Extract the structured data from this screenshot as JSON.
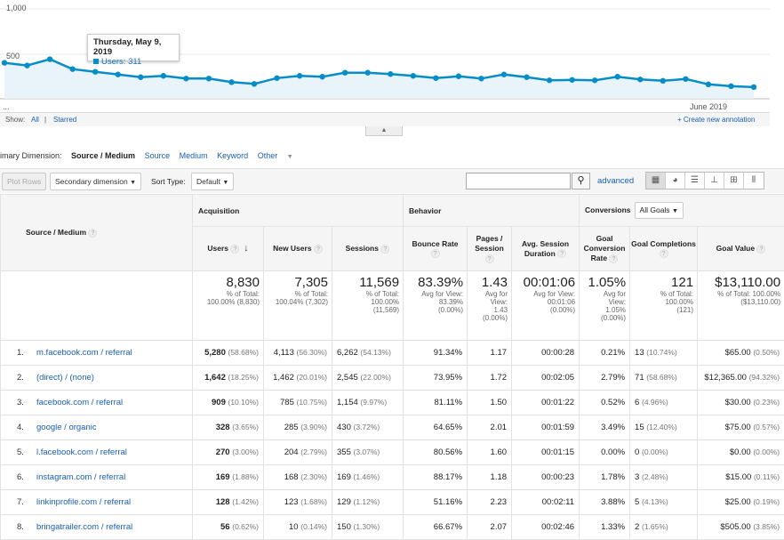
{
  "chart": {
    "y_labels": [
      "1,000",
      "500",
      "..."
    ],
    "x_label": "June 2019",
    "points": [
      400,
      370,
      440,
      330,
      300,
      270,
      240,
      255,
      225,
      225,
      185,
      165,
      230,
      255,
      245,
      290,
      290,
      275,
      255,
      230,
      250,
      225,
      270,
      240,
      205,
      210,
      205,
      245,
      215,
      200,
      220,
      160,
      140,
      130
    ],
    "y_max": 1000,
    "line_color": "#058dc7",
    "fill_color": "#e9f3fa"
  },
  "tooltip": {
    "date": "Thursday, May 9, 2019",
    "series": "Users: 311"
  },
  "annotations": {
    "show_label": "Show:",
    "all": "All",
    "sep": "|",
    "starred": "Starred",
    "create": "+ Create new annotation"
  },
  "primary_dimension": {
    "label": "imary Dimension:",
    "selected": "Source / Medium",
    "options": [
      "Source",
      "Medium",
      "Keyword",
      "Other"
    ]
  },
  "toolbar": {
    "plot_rows": "Plot Rows",
    "secondary_dimension": "Secondary dimension",
    "sort_type_label": "Sort Type:",
    "sort_type_value": "Default",
    "advanced": "advanced"
  },
  "table": {
    "dimension_header": "Source / Medium",
    "groups": {
      "acquisition": "Acquisition",
      "behavior": "Behavior",
      "conversions": "Conversions",
      "goals_select": "All Goals"
    },
    "columns": {
      "users": "Users",
      "new_users": "New Users",
      "sessions": "Sessions",
      "bounce_rate": "Bounce Rate",
      "pages_session": "Pages / Session",
      "avg_duration": "Avg. Session Duration",
      "goal_conv_rate": "Goal Conversion Rate",
      "goal_completions": "Goal Completions",
      "goal_value": "Goal Value"
    },
    "totals": {
      "users": {
        "value": "8,830",
        "sub1": "% of Total:",
        "sub2": "100.00% (8,830)"
      },
      "new_users": {
        "value": "7,305",
        "sub1": "% of Total:",
        "sub2": "100.04% (7,302)"
      },
      "sessions": {
        "value": "11,569",
        "sub1": "% of Total:",
        "sub2": "100.00%",
        "sub3": "(11,569)"
      },
      "bounce_rate": {
        "value": "83.39%",
        "sub1": "Avg for View:",
        "sub2": "83.39%",
        "sub3": "(0.00%)"
      },
      "pages_session": {
        "value": "1.43",
        "sub1": "Avg for",
        "sub2": "View:",
        "sub3": "1.43",
        "sub4": "(0.00%)"
      },
      "avg_duration": {
        "value": "00:01:06",
        "sub1": "Avg for View:",
        "sub2": "00:01:06",
        "sub3": "(0.00%)"
      },
      "goal_conv_rate": {
        "value": "1.05%",
        "sub1": "Avg for",
        "sub2": "View:",
        "sub3": "1.05%",
        "sub4": "(0.00%)"
      },
      "goal_completions": {
        "value": "121",
        "sub1": "% of Total:",
        "sub2": "100.00%",
        "sub3": "(121)"
      },
      "goal_value": {
        "value": "$13,110.00",
        "sub1": "% of Total: 100.00%",
        "sub2": "($13,110.00)"
      }
    },
    "rows": [
      {
        "idx": "1.",
        "name": "m.facebook.com / referral",
        "users": "5,280",
        "users_pct": "(58.68%)",
        "new_users": "4,113",
        "new_users_pct": "(56.30%)",
        "sessions": "6,262",
        "sessions_pct": "(54.13%)",
        "bounce": "91.34%",
        "pages": "1.17",
        "duration": "00:00:28",
        "conv": "0.21%",
        "comp": "13",
        "comp_pct": "(10.74%)",
        "value": "$65.00",
        "value_pct": "(0.50%)"
      },
      {
        "idx": "2.",
        "name": "(direct) / (none)",
        "users": "1,642",
        "users_pct": "(18.25%)",
        "new_users": "1,462",
        "new_users_pct": "(20.01%)",
        "sessions": "2,545",
        "sessions_pct": "(22.00%)",
        "bounce": "73.95%",
        "pages": "1.72",
        "duration": "00:02:05",
        "conv": "2.79%",
        "comp": "71",
        "comp_pct": "(58.68%)",
        "value": "$12,365.00",
        "value_pct": "(94.32%)"
      },
      {
        "idx": "3.",
        "name": "facebook.com / referral",
        "users": "909",
        "users_pct": "(10.10%)",
        "new_users": "785",
        "new_users_pct": "(10.75%)",
        "sessions": "1,154",
        "sessions_pct": "(9.97%)",
        "bounce": "81.11%",
        "pages": "1.50",
        "duration": "00:01:22",
        "conv": "0.52%",
        "comp": "6",
        "comp_pct": "(4.96%)",
        "value": "$30.00",
        "value_pct": "(0.23%)"
      },
      {
        "idx": "4.",
        "name": "google / organic",
        "users": "328",
        "users_pct": "(3.65%)",
        "new_users": "285",
        "new_users_pct": "(3.90%)",
        "sessions": "430",
        "sessions_pct": "(3.72%)",
        "bounce": "64.65%",
        "pages": "2.01",
        "duration": "00:01:59",
        "conv": "3.49%",
        "comp": "15",
        "comp_pct": "(12.40%)",
        "value": "$75.00",
        "value_pct": "(0.57%)"
      },
      {
        "idx": "5.",
        "name": "l.facebook.com / referral",
        "users": "270",
        "users_pct": "(3.00%)",
        "new_users": "204",
        "new_users_pct": "(2.79%)",
        "sessions": "355",
        "sessions_pct": "(3.07%)",
        "bounce": "80.56%",
        "pages": "1.60",
        "duration": "00:01:15",
        "conv": "0.00%",
        "comp": "0",
        "comp_pct": "(0.00%)",
        "value": "$0.00",
        "value_pct": "(0.00%)"
      },
      {
        "idx": "6.",
        "name": "instagram.com / referral",
        "users": "169",
        "users_pct": "(1.88%)",
        "new_users": "168",
        "new_users_pct": "(2.30%)",
        "sessions": "169",
        "sessions_pct": "(1.46%)",
        "bounce": "88.17%",
        "pages": "1.18",
        "duration": "00:00:23",
        "conv": "1.78%",
        "comp": "3",
        "comp_pct": "(2.48%)",
        "value": "$15.00",
        "value_pct": "(0.11%)"
      },
      {
        "idx": "7.",
        "name": "linkinprofile.com / referral",
        "users": "128",
        "users_pct": "(1.42%)",
        "new_users": "123",
        "new_users_pct": "(1.68%)",
        "sessions": "129",
        "sessions_pct": "(1.12%)",
        "bounce": "51.16%",
        "pages": "2.23",
        "duration": "00:02:11",
        "conv": "3.88%",
        "comp": "5",
        "comp_pct": "(4.13%)",
        "value": "$25.00",
        "value_pct": "(0.19%)"
      },
      {
        "idx": "8.",
        "name": "bringatrailer.com / referral",
        "users": "56",
        "users_pct": "(0.62%)",
        "new_users": "10",
        "new_users_pct": "(0.14%)",
        "sessions": "150",
        "sessions_pct": "(1.30%)",
        "bounce": "66.67%",
        "pages": "2.07",
        "duration": "00:02:46",
        "conv": "1.33%",
        "comp": "2",
        "comp_pct": "(1.65%)",
        "value": "$505.00",
        "value_pct": "(3.85%)"
      }
    ]
  }
}
